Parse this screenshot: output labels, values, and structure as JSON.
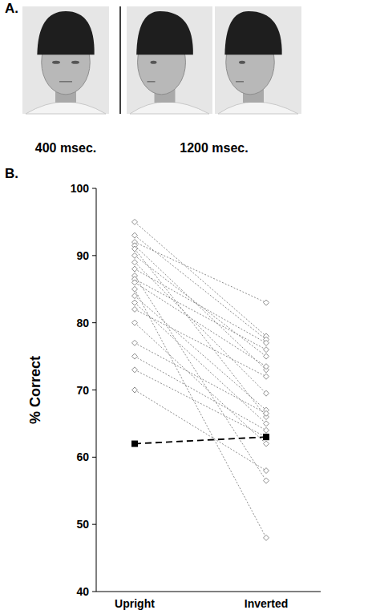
{
  "figure": {
    "panel_a": {
      "letter": "A.",
      "labels": [
        "400 msec.",
        "1200 msec."
      ]
    },
    "panel_b": {
      "letter": "B."
    }
  },
  "chart_data": {
    "type": "line",
    "ylabel": "% Correct",
    "categories": [
      "Upright",
      "Inverted"
    ],
    "ylim": [
      40,
      100
    ],
    "yticks": [
      40,
      50,
      60,
      70,
      80,
      90,
      100
    ],
    "grid": false,
    "series": [
      {
        "values": [
          95,
          78
        ],
        "color": "#8c8c8c",
        "marker": "diamond",
        "line_style": "dotted"
      },
      {
        "values": [
          93,
          77.5
        ],
        "color": "#8c8c8c",
        "marker": "diamond",
        "line_style": "dotted"
      },
      {
        "values": [
          92,
          83
        ],
        "color": "#8c8c8c",
        "marker": "diamond",
        "line_style": "dotted"
      },
      {
        "values": [
          91.5,
          73
        ],
        "color": "#8c8c8c",
        "marker": "diamond",
        "line_style": "dotted"
      },
      {
        "values": [
          91,
          66
        ],
        "color": "#8c8c8c",
        "marker": "diamond",
        "line_style": "dotted"
      },
      {
        "values": [
          90,
          75
        ],
        "color": "#8c8c8c",
        "marker": "diamond",
        "line_style": "dotted"
      },
      {
        "values": [
          89,
          69.5
        ],
        "color": "#8c8c8c",
        "marker": "diamond",
        "line_style": "dotted"
      },
      {
        "values": [
          88,
          77
        ],
        "color": "#8c8c8c",
        "marker": "diamond",
        "line_style": "dotted"
      },
      {
        "values": [
          87,
          56.5
        ],
        "color": "#8c8c8c",
        "marker": "diamond",
        "line_style": "dotted"
      },
      {
        "values": [
          86.5,
          76
        ],
        "color": "#8c8c8c",
        "marker": "diamond",
        "line_style": "dotted"
      },
      {
        "values": [
          86,
          73.5
        ],
        "color": "#8c8c8c",
        "marker": "diamond",
        "line_style": "dotted"
      },
      {
        "values": [
          85,
          48
        ],
        "color": "#8c8c8c",
        "marker": "diamond",
        "line_style": "dotted"
      },
      {
        "values": [
          84,
          67
        ],
        "color": "#8c8c8c",
        "marker": "diamond",
        "line_style": "dotted"
      },
      {
        "values": [
          83,
          65
        ],
        "color": "#8c8c8c",
        "marker": "diamond",
        "line_style": "dotted"
      },
      {
        "values": [
          82,
          72
        ],
        "color": "#8c8c8c",
        "marker": "diamond",
        "line_style": "dotted"
      },
      {
        "values": [
          80,
          62
        ],
        "color": "#8c8c8c",
        "marker": "diamond",
        "line_style": "dotted"
      },
      {
        "values": [
          77,
          66.5
        ],
        "color": "#8c8c8c",
        "marker": "diamond",
        "line_style": "dotted"
      },
      {
        "values": [
          75,
          64
        ],
        "color": "#8c8c8c",
        "marker": "diamond",
        "line_style": "dotted"
      },
      {
        "values": [
          73,
          63
        ],
        "color": "#8c8c8c",
        "marker": "diamond",
        "line_style": "dotted"
      },
      {
        "values": [
          70,
          58
        ],
        "color": "#8c8c8c",
        "marker": "diamond",
        "line_style": "dotted"
      },
      {
        "values": [
          62,
          63
        ],
        "color": "#000000",
        "marker": "square",
        "line_style": "dashed"
      }
    ]
  }
}
